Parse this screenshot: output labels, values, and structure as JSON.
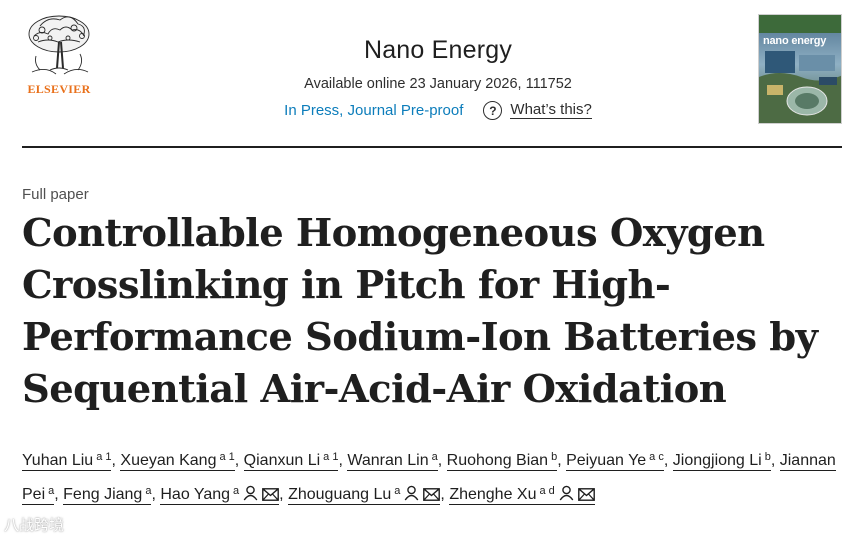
{
  "publisher": {
    "name": "ELSEVIER",
    "logo_icon": "elsevier-tree-logo-icon"
  },
  "journal": {
    "title": "Nano Energy",
    "available": "Available online 23 January 2026, 111752",
    "status_link": "In Press, Journal Pre-proof",
    "help_icon": "question-circle-icon",
    "help_symbol": "?",
    "help_link": "What’s this?",
    "cover_title": "nano energy"
  },
  "article": {
    "type": "Full paper",
    "title": "Controllable Homogeneous Oxygen Crosslinking in Pitch for High-Performance Sodium-Ion Batteries by Sequential Air-Acid-Air Oxidation"
  },
  "authors": [
    {
      "name": "Yuhan Liu",
      "aff": "a 1"
    },
    {
      "name": "Xueyan Kang",
      "aff": "a 1"
    },
    {
      "name": "Qianxun Li",
      "aff": "a 1"
    },
    {
      "name": "Wanran Lin",
      "aff": "a"
    },
    {
      "name": "Ruohong Bian",
      "aff": "b"
    },
    {
      "name": "Peiyuan Ye",
      "aff": "a c"
    },
    {
      "name": "Jiongjiong Li",
      "aff": "b"
    },
    {
      "name": "Jiannan Pei",
      "aff": "a"
    },
    {
      "name": "Feng Jiang",
      "aff": "a"
    },
    {
      "name": "Hao Yang",
      "aff": "a"
    },
    {
      "name": "Zhouguang Lu",
      "aff": "a"
    },
    {
      "name": "Zhenghe Xu",
      "aff": "a d"
    }
  ],
  "author_icons": {
    "person": "person-icon",
    "email": "envelope-icon"
  },
  "separator": ",",
  "watermark": "八战跨境",
  "colors": {
    "link": "#0c7dbb",
    "publisher_orange": "#e9711c",
    "text": "#1f1f1f"
  }
}
